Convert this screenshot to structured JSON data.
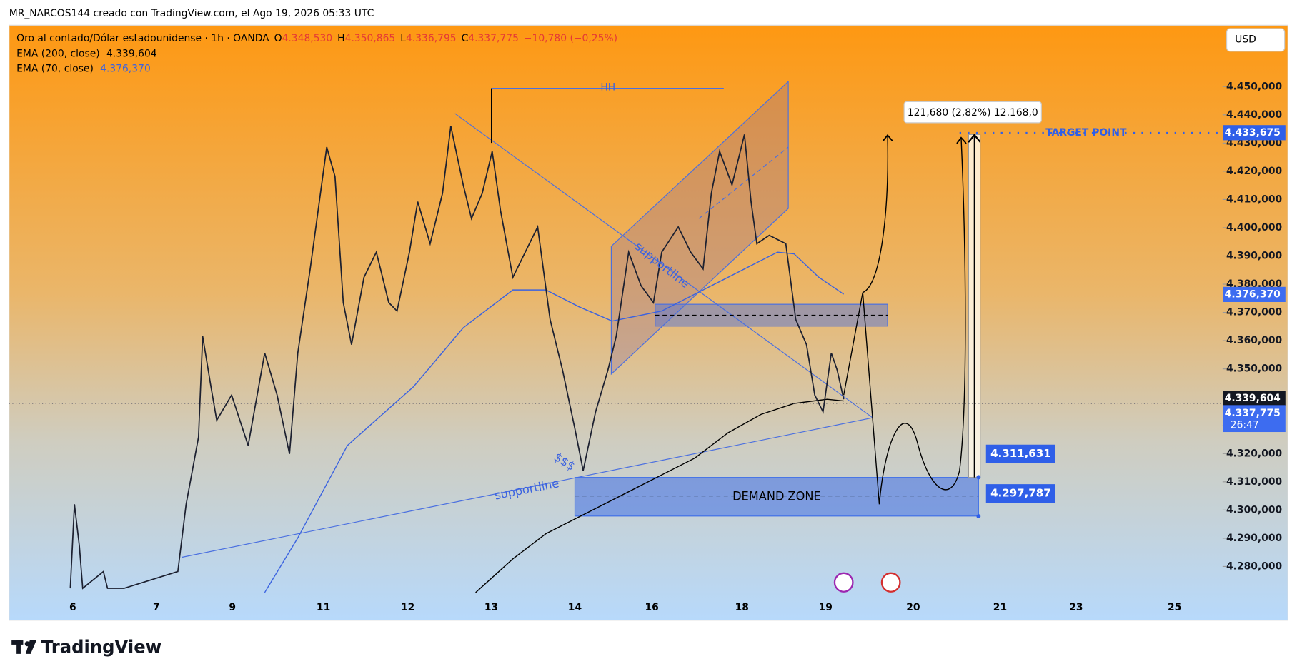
{
  "header": {
    "attribution": "MR_NARCOS144 creado con TradingView.com, el Ago 19, 2026 05:33 UTC"
  },
  "legend": {
    "symbol": "Oro al contado/Dólar estadounidense · 1h · OANDA",
    "ohlc": [
      {
        "key": "O",
        "value": "4.348,530"
      },
      {
        "key": "H",
        "value": "4.350,865"
      },
      {
        "key": "L",
        "value": "4.336,795"
      },
      {
        "key": "C",
        "value": "4.337,775"
      }
    ],
    "change": "−10,780 (−0,25%)",
    "indicators": [
      {
        "name": "EMA (200, close)",
        "value": "4.339,604"
      },
      {
        "name": "EMA (70, close)",
        "value": "4.376,370"
      }
    ]
  },
  "currency": "USD",
  "price_axis": [
    {
      "value": 4450,
      "label": "4.450,000"
    },
    {
      "value": 4440,
      "label": "4.440,000"
    },
    {
      "value": 4430,
      "label": "4.430,000"
    },
    {
      "value": 4420,
      "label": "4.420,000"
    },
    {
      "value": 4410,
      "label": "4.410,000"
    },
    {
      "value": 4400,
      "label": "4.400,000"
    },
    {
      "value": 4390,
      "label": "4.390,000"
    },
    {
      "value": 4380,
      "label": "4.380,000"
    },
    {
      "value": 4370,
      "label": "4.370,000"
    },
    {
      "value": 4360,
      "label": "4.360,000"
    },
    {
      "value": 4350,
      "label": "4.350,000"
    },
    {
      "value": 4340,
      "label": "4.340,000"
    },
    {
      "value": 4330,
      "label": "4.330,000"
    },
    {
      "value": 4320,
      "label": "4.320,000"
    },
    {
      "value": 4310,
      "label": "4.310,000"
    },
    {
      "value": 4300,
      "label": "4.300,000"
    },
    {
      "value": 4290,
      "label": "4.290,000"
    },
    {
      "value": 4280,
      "label": "4.280,000"
    }
  ],
  "date_axis": [
    "6",
    "7",
    "9",
    "11",
    "12",
    "13",
    "14",
    "16",
    "18",
    "19",
    "20",
    "21",
    "23",
    "25"
  ],
  "price_tags": [
    {
      "value": 4433.675,
      "label": "4.433,675"
    },
    {
      "value": 4376.37,
      "label": "4.376,370"
    },
    {
      "value": 4339.604,
      "label": "4.339,604"
    },
    {
      "value": 4337.775,
      "label": "4.337,775",
      "countdown": "26:47"
    }
  ],
  "annotations": {
    "hh": "HH",
    "supportline_upper": "supportline",
    "supportline_lower": "supportline",
    "money": "$$$",
    "demand_zone": "DEMAND ZONE",
    "target": "TARGET POINT",
    "measure": "121,680 (2,82%) 12.168,0",
    "zone_top": {
      "value": 4311.631,
      "label": "4.311,631"
    },
    "zone_bottom": {
      "value": 4297.787,
      "label": "4.297,787"
    }
  },
  "brand": "TradingView"
}
